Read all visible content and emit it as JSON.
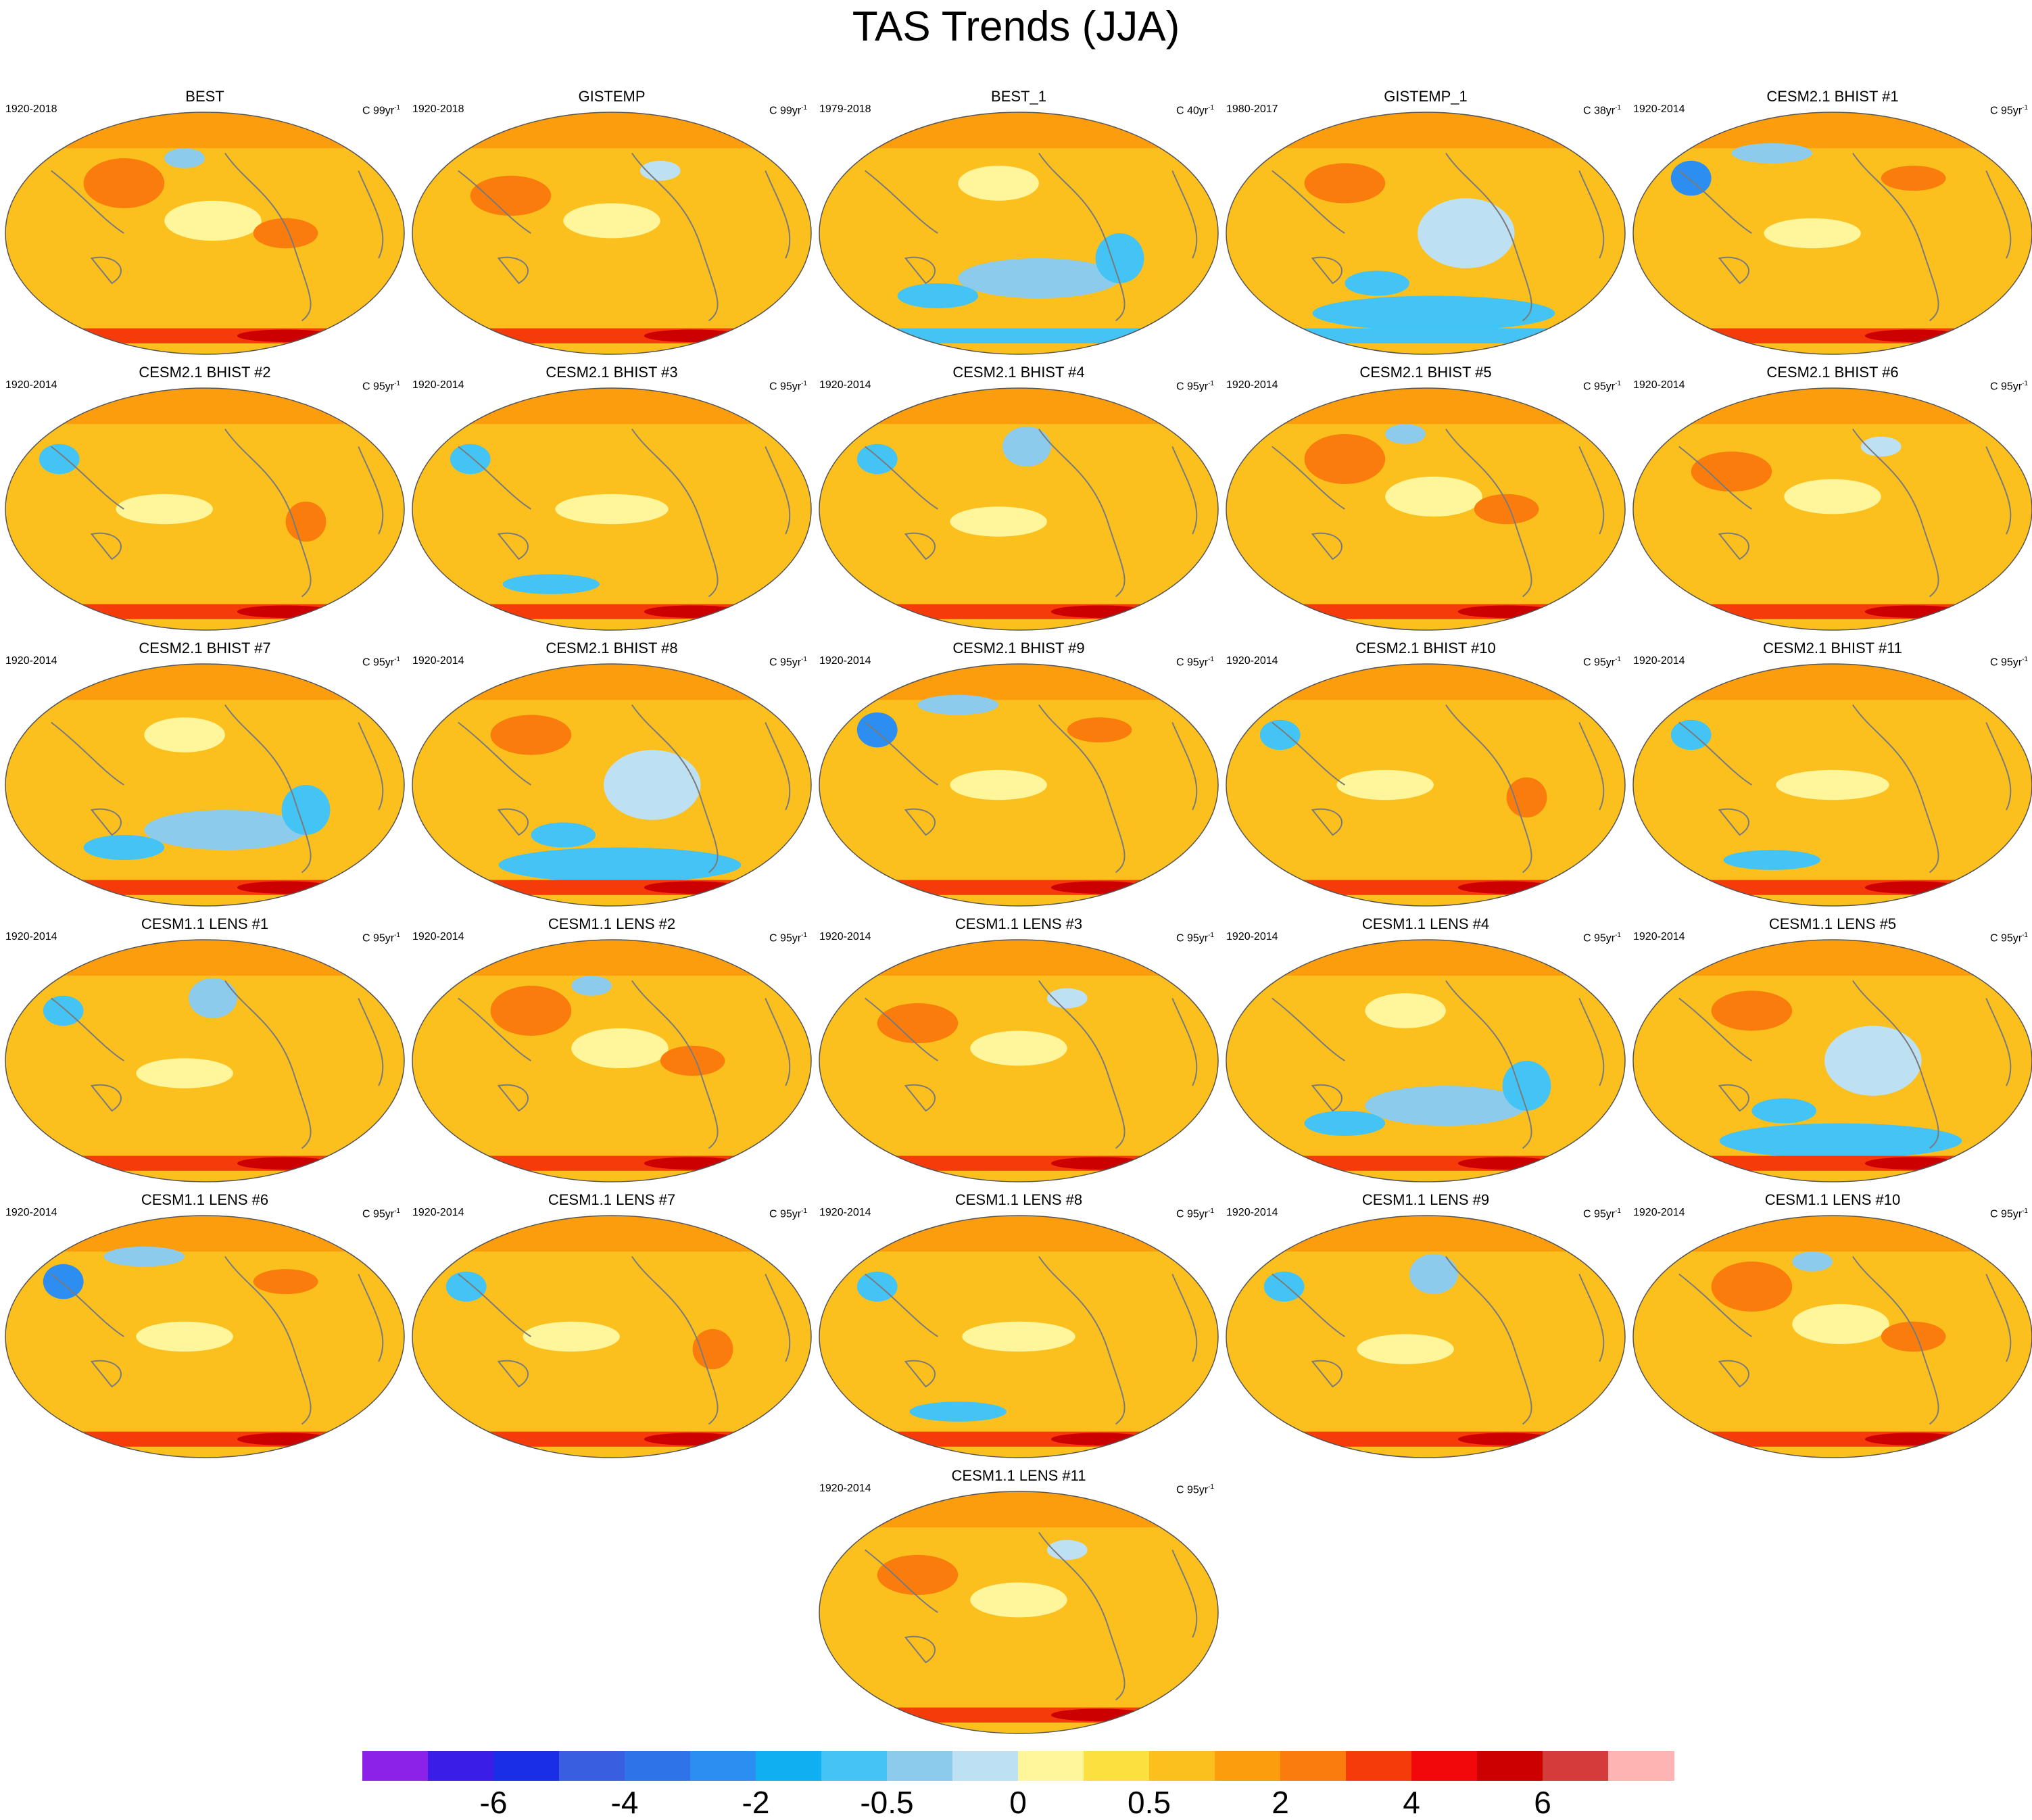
{
  "chart_data": {
    "type": "heatmap",
    "title": "TAS Trends (JJA)",
    "projection": "global map (Robinson-like), Pacific-centered",
    "panels": [
      {
        "name": "BEST",
        "period": "1920-2018",
        "units_prefix": "C 99yr",
        "units_exp": "-1"
      },
      {
        "name": "GISTEMP",
        "period": "1920-2018",
        "units_prefix": "C 99yr",
        "units_exp": "-1"
      },
      {
        "name": "BEST_1",
        "period": "1979-2018",
        "units_prefix": "C 40yr",
        "units_exp": "-1"
      },
      {
        "name": "GISTEMP_1",
        "period": "1980-2017",
        "units_prefix": "C 38yr",
        "units_exp": "-1"
      },
      {
        "name": "CESM2.1 BHIST #1",
        "period": "1920-2014",
        "units_prefix": "C 95yr",
        "units_exp": "-1"
      },
      {
        "name": "CESM2.1 BHIST #2",
        "period": "1920-2014",
        "units_prefix": "C 95yr",
        "units_exp": "-1"
      },
      {
        "name": "CESM2.1 BHIST #3",
        "period": "1920-2014",
        "units_prefix": "C 95yr",
        "units_exp": "-1"
      },
      {
        "name": "CESM2.1 BHIST #4",
        "period": "1920-2014",
        "units_prefix": "C 95yr",
        "units_exp": "-1"
      },
      {
        "name": "CESM2.1 BHIST #5",
        "period": "1920-2014",
        "units_prefix": "C 95yr",
        "units_exp": "-1"
      },
      {
        "name": "CESM2.1 BHIST #6",
        "period": "1920-2014",
        "units_prefix": "C 95yr",
        "units_exp": "-1"
      },
      {
        "name": "CESM2.1 BHIST #7",
        "period": "1920-2014",
        "units_prefix": "C 95yr",
        "units_exp": "-1"
      },
      {
        "name": "CESM2.1 BHIST #8",
        "period": "1920-2014",
        "units_prefix": "C 95yr",
        "units_exp": "-1"
      },
      {
        "name": "CESM2.1 BHIST #9",
        "period": "1920-2014",
        "units_prefix": "C 95yr",
        "units_exp": "-1"
      },
      {
        "name": "CESM2.1 BHIST #10",
        "period": "1920-2014",
        "units_prefix": "C 95yr",
        "units_exp": "-1"
      },
      {
        "name": "CESM2.1 BHIST #11",
        "period": "1920-2014",
        "units_prefix": "C 95yr",
        "units_exp": "-1"
      },
      {
        "name": "CESM1.1 LENS #1",
        "period": "1920-2014",
        "units_prefix": "C 95yr",
        "units_exp": "-1"
      },
      {
        "name": "CESM1.1 LENS #2",
        "period": "1920-2014",
        "units_prefix": "C 95yr",
        "units_exp": "-1"
      },
      {
        "name": "CESM1.1 LENS #3",
        "period": "1920-2014",
        "units_prefix": "C 95yr",
        "units_exp": "-1"
      },
      {
        "name": "CESM1.1 LENS #4",
        "period": "1920-2014",
        "units_prefix": "C 95yr",
        "units_exp": "-1"
      },
      {
        "name": "CESM1.1 LENS #5",
        "period": "1920-2014",
        "units_prefix": "C 95yr",
        "units_exp": "-1"
      },
      {
        "name": "CESM1.1 LENS #6",
        "period": "1920-2014",
        "units_prefix": "C 95yr",
        "units_exp": "-1"
      },
      {
        "name": "CESM1.1 LENS #7",
        "period": "1920-2014",
        "units_prefix": "C 95yr",
        "units_exp": "-1"
      },
      {
        "name": "CESM1.1 LENS #8",
        "period": "1920-2014",
        "units_prefix": "C 95yr",
        "units_exp": "-1"
      },
      {
        "name": "CESM1.1 LENS #9",
        "period": "1920-2014",
        "units_prefix": "C 95yr",
        "units_exp": "-1"
      },
      {
        "name": "CESM1.1 LENS #10",
        "period": "1920-2014",
        "units_prefix": "C 95yr",
        "units_exp": "-1"
      },
      {
        "name": "CESM1.1 LENS #11",
        "period": "1920-2014",
        "units_prefix": "C 95yr",
        "units_exp": "-1"
      }
    ],
    "colorbar": {
      "colors": [
        "#8c22e8",
        "#3a1ee8",
        "#1a2ee8",
        "#3a5ee0",
        "#2e74e8",
        "#2b8ef0",
        "#0fb0f2",
        "#43c4f4",
        "#8ccbec",
        "#bde0f2",
        "#fff59a",
        "#fce040",
        "#fbbf1e",
        "#fb9d0c",
        "#fa7c0c",
        "#f63b0a",
        "#f2070a",
        "#cc0000",
        "#d43c3c",
        "#ffb4b4"
      ],
      "labels": [
        {
          "text": "-6",
          "boundary": 2
        },
        {
          "text": "-4",
          "boundary": 4
        },
        {
          "text": "-2",
          "boundary": 6
        },
        {
          "text": "-0.5",
          "boundary": 8
        },
        {
          "text": "0",
          "boundary": 10
        },
        {
          "text": "0.5",
          "boundary": 12
        },
        {
          "text": "2",
          "boundary": 14
        },
        {
          "text": "4",
          "boundary": 16
        },
        {
          "text": "6",
          "boundary": 18
        }
      ]
    }
  }
}
